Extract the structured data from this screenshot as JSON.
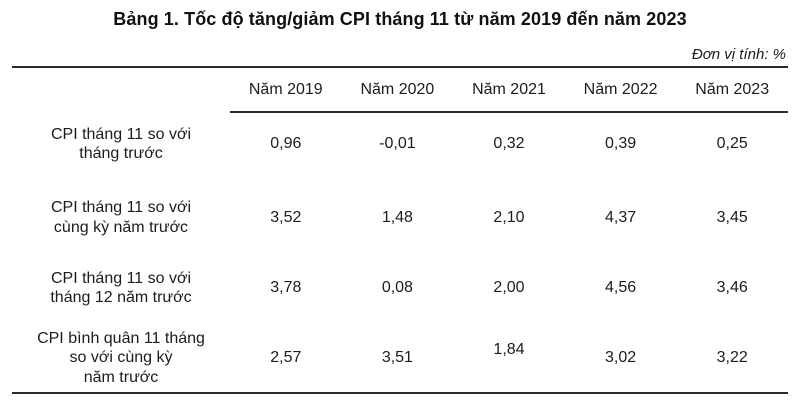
{
  "title": "Bảng 1. Tốc độ tăng/giảm CPI tháng 11 từ năm 2019 đến năm 2023",
  "unit_note": "Đơn vị tính: %",
  "colors": {
    "text": "#1c1c1c",
    "rule": "#2b2b2b",
    "background": "#ffffff"
  },
  "table": {
    "columns": [
      "Năm 2019",
      "Năm 2020",
      "Năm 2021",
      "Năm 2022",
      "Năm 2023"
    ],
    "rows": [
      {
        "label_lines": [
          "CPI tháng 11 so với",
          "tháng trước"
        ],
        "values": [
          "0,96",
          "-0,01",
          "0,32",
          "0,39",
          "0,25"
        ]
      },
      {
        "label_lines": [
          "CPI tháng 11 so với",
          "cùng kỳ năm trước"
        ],
        "values": [
          "3,52",
          "1,48",
          "2,10",
          "4,37",
          "3,45"
        ]
      },
      {
        "label_lines": [
          "CPI tháng 11 so với",
          "tháng 12 năm trước"
        ],
        "values": [
          "3,78",
          "0,08",
          "2,00",
          "4,56",
          "3,46"
        ]
      },
      {
        "label_lines": [
          "CPI bình quân 11 tháng",
          "so với cùng kỳ",
          "năm trước"
        ],
        "values": [
          "2,57",
          "3,51",
          "1,84",
          "3,02",
          "3,22"
        ]
      }
    ]
  }
}
